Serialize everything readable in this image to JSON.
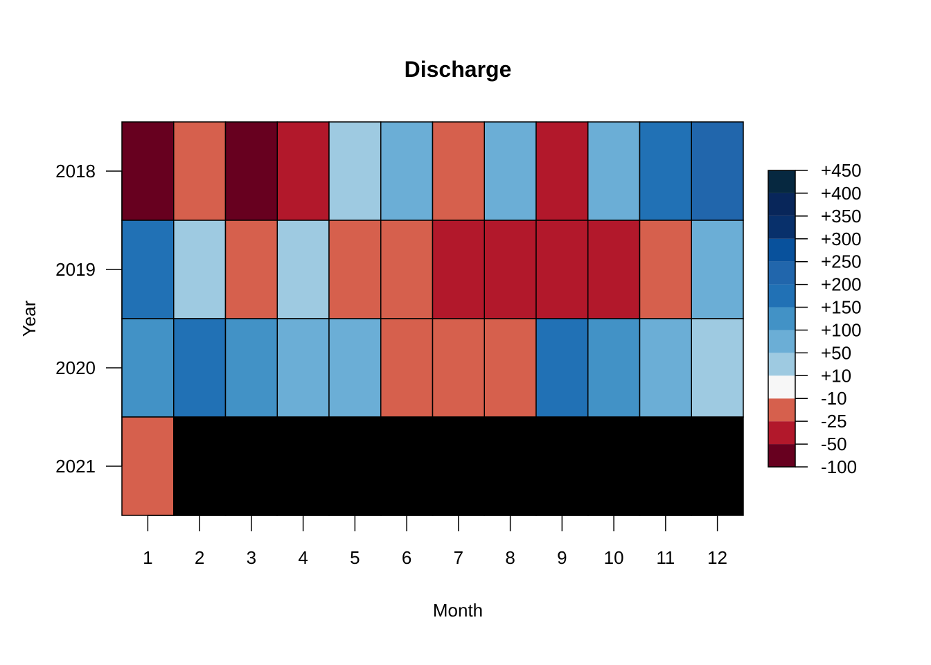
{
  "chart_data": {
    "type": "heatmap",
    "title": "Discharge",
    "xlabel": "Month",
    "ylabel": "Year",
    "x_categories": [
      "1",
      "2",
      "3",
      "4",
      "5",
      "6",
      "7",
      "8",
      "9",
      "10",
      "11",
      "12"
    ],
    "y_categories": [
      "2018",
      "2019",
      "2020",
      "2021"
    ],
    "cell_classes": [
      [
        "-100",
        "-25",
        "-100",
        "-50",
        "+10",
        "+50",
        "-25",
        "+50",
        "-50",
        "+50",
        "+150",
        "+200"
      ],
      [
        "+150",
        "+10",
        "-25",
        "+10",
        "-25",
        "-25",
        "-50",
        "-50",
        "-50",
        "-50",
        "-25",
        "+50"
      ],
      [
        "+100",
        "+150",
        "+100",
        "+50",
        "+50",
        "-25",
        "-25",
        "-25",
        "+150",
        "+100",
        "+50",
        "+10"
      ],
      [
        "-25",
        null,
        null,
        null,
        null,
        null,
        null,
        null,
        null,
        null,
        null,
        null
      ]
    ],
    "missing_color": "#000000",
    "legend": {
      "placement": "right",
      "breaks": [
        "-100",
        "-50",
        "-25",
        "-10",
        "+10",
        "+50",
        "+100",
        "+150",
        "+200",
        "+250",
        "+300",
        "+350",
        "+400",
        "+450"
      ],
      "bins": [
        {
          "from": "-100",
          "to": "-50",
          "color": "#67001F"
        },
        {
          "from": "-50",
          "to": "-25",
          "color": "#B2182B"
        },
        {
          "from": "-25",
          "to": "-10",
          "color": "#D6604D"
        },
        {
          "from": "-10",
          "to": "+10",
          "color": "#F7F7F7"
        },
        {
          "from": "+10",
          "to": "+50",
          "color": "#9ECAE1"
        },
        {
          "from": "+50",
          "to": "+100",
          "color": "#6BAED6"
        },
        {
          "from": "+100",
          "to": "+150",
          "color": "#4292C6"
        },
        {
          "from": "+150",
          "to": "+200",
          "color": "#2171B5"
        },
        {
          "from": "+200",
          "to": "+250",
          "color": "#2166AC"
        },
        {
          "from": "+250",
          "to": "+300",
          "color": "#08519C"
        },
        {
          "from": "+300",
          "to": "+350",
          "color": "#08306B"
        },
        {
          "from": "+350",
          "to": "+400",
          "color": "#08265A"
        },
        {
          "from": "+400",
          "to": "+450",
          "color": "#062840"
        }
      ]
    }
  }
}
